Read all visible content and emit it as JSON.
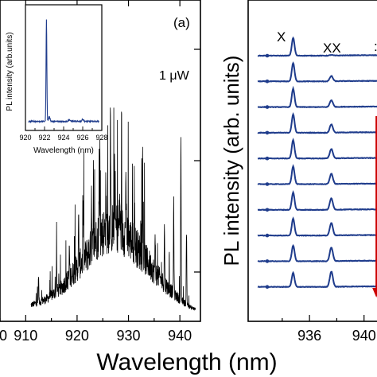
{
  "chart_data": [
    {
      "panel_label": "(a)",
      "type": "line",
      "annotation": "1 μW",
      "xlabel": "Wavelength (nm)",
      "ylabel": "",
      "xlim": [
        905,
        944
      ],
      "ylim": [
        0,
        1
      ],
      "x_ticks": [
        910,
        920,
        930,
        940
      ],
      "x_tick_labels_visible": [
        "910",
        "920",
        "930",
        "940"
      ],
      "x_tick_label_left_partial": "0",
      "colors": {
        "spectrum": "#000000"
      },
      "envelope": {
        "x": [
          905,
          908,
          911,
          914,
          917,
          920,
          922,
          924,
          926,
          928,
          930,
          932,
          934,
          936,
          938,
          940,
          942,
          944
        ],
        "y": [
          0.02,
          0.03,
          0.05,
          0.08,
          0.14,
          0.24,
          0.31,
          0.4,
          0.44,
          0.45,
          0.4,
          0.33,
          0.26,
          0.19,
          0.13,
          0.08,
          0.04,
          0.02
        ]
      },
      "peaks": [
        {
          "x": 912.5,
          "y": 0.2
        },
        {
          "x": 916.0,
          "y": 0.28
        },
        {
          "x": 918.5,
          "y": 0.34
        },
        {
          "x": 920.3,
          "y": 0.46
        },
        {
          "x": 921.2,
          "y": 0.55
        },
        {
          "x": 922.8,
          "y": 0.62
        },
        {
          "x": 924.3,
          "y": 0.74
        },
        {
          "x": 925.6,
          "y": 0.66
        },
        {
          "x": 926.5,
          "y": 0.94
        },
        {
          "x": 927.3,
          "y": 0.7
        },
        {
          "x": 928.3,
          "y": 0.6
        },
        {
          "x": 929.5,
          "y": 0.72
        },
        {
          "x": 931.2,
          "y": 0.52
        },
        {
          "x": 932.8,
          "y": 0.48
        },
        {
          "x": 935.2,
          "y": 0.38
        },
        {
          "x": 937.0,
          "y": 0.44
        },
        {
          "x": 938.8,
          "y": 0.56
        },
        {
          "x": 940.2,
          "y": 0.84
        },
        {
          "x": 941.3,
          "y": 0.4
        }
      ]
    },
    {
      "panel_label": "inset",
      "type": "line",
      "xlabel": "Wavelength (nm)",
      "ylabel": "PL intensity (arb.units)",
      "xlim": [
        920,
        928
      ],
      "ylim": [
        0,
        1
      ],
      "x_ticks": [
        920,
        922,
        924,
        926,
        928
      ],
      "x_tick_labels": [
        "920",
        "922",
        "924",
        "926",
        "928"
      ],
      "colors": {
        "spectrum": "#1f3c8c"
      },
      "baseline": 0.04,
      "peaks": [
        {
          "x": 922.2,
          "y": 1.0
        },
        {
          "x": 922.5,
          "y": 0.08
        },
        {
          "x": 924.6,
          "y": 0.055
        },
        {
          "x": 926.0,
          "y": 0.06
        }
      ]
    },
    {
      "panel_label": "(b)",
      "type": "line",
      "xlabel": "",
      "ylabel": "PL intensity (arb. units)",
      "xlim": [
        931.5,
        942.0
      ],
      "x_ticks": [
        936,
        940
      ],
      "x_tick_labels": [
        "936",
        "940"
      ],
      "annotations": [
        "X",
        "XX"
      ],
      "colors": {
        "series": "#1f3c8c",
        "arrow": "#cc0000"
      },
      "arrow": {
        "x": 940.9,
        "direction": "down"
      },
      "series": [
        {
          "x_peak": 934.8,
          "xx_peak": 937.6,
          "x_amp": 0.7,
          "xx_amp": 0.05
        },
        {
          "x_peak": 934.8,
          "xx_peak": 937.6,
          "x_amp": 0.72,
          "xx_amp": 0.35
        },
        {
          "x_peak": 934.8,
          "xx_peak": 937.6,
          "x_amp": 0.72,
          "xx_amp": 0.45
        },
        {
          "x_peak": 934.8,
          "xx_peak": 937.6,
          "x_amp": 0.72,
          "xx_amp": 0.55
        },
        {
          "x_peak": 934.8,
          "xx_peak": 937.6,
          "x_amp": 0.72,
          "xx_amp": 0.62
        },
        {
          "x_peak": 934.8,
          "xx_peak": 937.6,
          "x_amp": 0.7,
          "xx_amp": 0.68
        },
        {
          "x_peak": 934.8,
          "xx_peak": 937.6,
          "x_amp": 0.68,
          "xx_amp": 0.75
        },
        {
          "x_peak": 934.8,
          "xx_peak": 937.6,
          "x_amp": 0.66,
          "xx_amp": 0.82
        },
        {
          "x_peak": 934.8,
          "xx_peak": 937.6,
          "x_amp": 0.62,
          "xx_amp": 0.9
        },
        {
          "x_peak": 934.8,
          "xx_peak": 937.6,
          "x_amp": 0.55,
          "xx_amp": 1.0
        }
      ]
    }
  ],
  "figure": {
    "shared_xlabel": "Wavelength (nm)"
  }
}
